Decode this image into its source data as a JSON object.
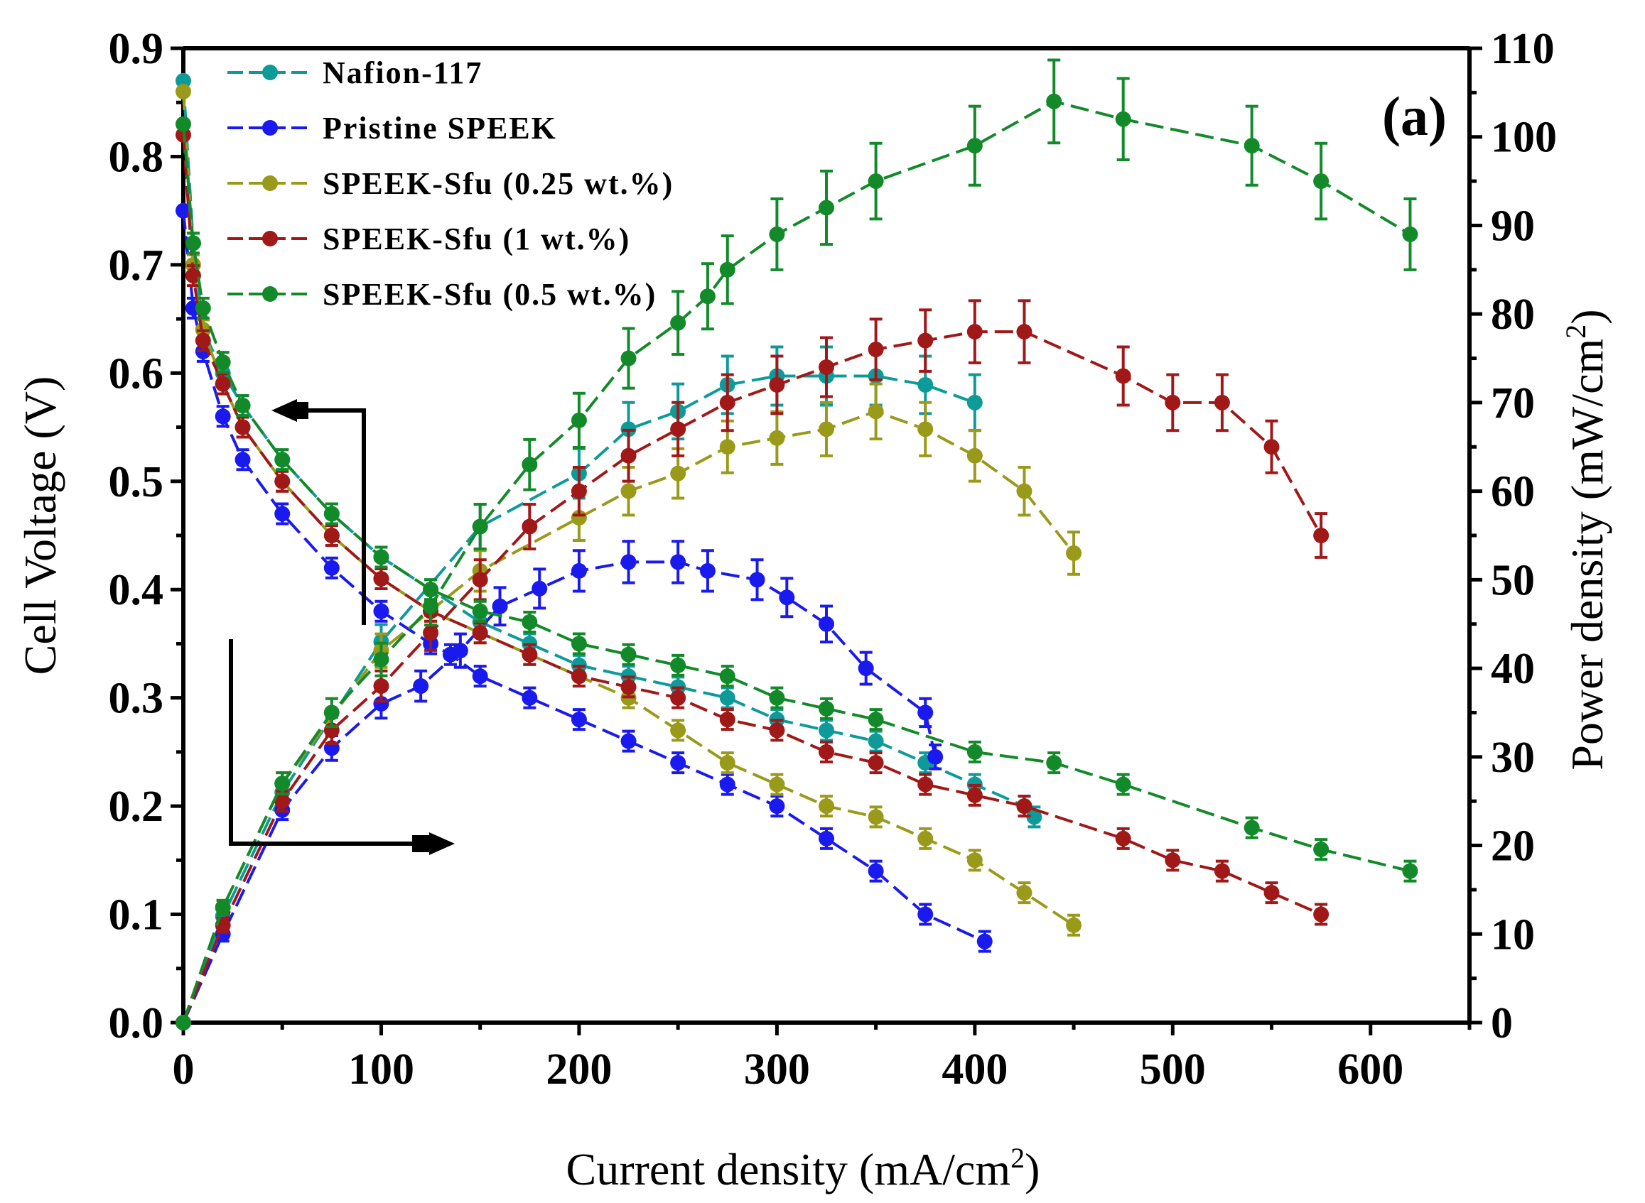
{
  "chart_data": {
    "type": "line",
    "panel_label": "(a)",
    "xlabel": "Current density (mA/cm",
    "xlabel_sup": "2",
    "xlabel_end": ")",
    "ylabel_left": "Cell Voltage (V)",
    "ylabel_right": "Power density (mW/cm",
    "ylabel_right_sup": "2",
    "ylabel_right_end": ")",
    "xlim": [
      0,
      650
    ],
    "ylim_left": [
      0,
      0.9
    ],
    "ylim_right": [
      0,
      110
    ],
    "x_ticks": [
      "0",
      "100",
      "200",
      "300",
      "400",
      "500",
      "600"
    ],
    "x_tick_values": [
      0,
      100,
      200,
      300,
      400,
      500,
      600
    ],
    "y_left_ticks": [
      "0.0",
      "0.1",
      "0.2",
      "0.3",
      "0.4",
      "0.5",
      "0.6",
      "0.7",
      "0.8",
      "0.9"
    ],
    "y_left_tick_values": [
      0,
      0.1,
      0.2,
      0.3,
      0.4,
      0.5,
      0.6,
      0.7,
      0.8,
      0.9
    ],
    "y_right_ticks": [
      "0",
      "10",
      "20",
      "30",
      "40",
      "50",
      "60",
      "70",
      "80",
      "90",
      "100",
      "110"
    ],
    "y_right_tick_values": [
      0,
      10,
      20,
      30,
      40,
      50,
      60,
      70,
      80,
      90,
      100,
      110
    ],
    "legend_position": "top-left",
    "series": [
      {
        "name": "Nafion-117",
        "color": "#0f9a9a",
        "voltage": {
          "x": [
            0,
            5,
            10,
            20,
            30,
            50,
            75,
            100,
            125,
            150,
            175,
            200,
            225,
            250,
            275,
            300,
            325,
            350,
            375,
            400,
            425,
            430
          ],
          "y": [
            0.87,
            0.72,
            0.64,
            0.6,
            0.57,
            0.52,
            0.47,
            0.43,
            0.4,
            0.37,
            0.35,
            0.33,
            0.32,
            0.31,
            0.3,
            0.28,
            0.27,
            0.26,
            0.24,
            0.22,
            0.2,
            0.19
          ]
        },
        "power": {
          "x": [
            0,
            20,
            50,
            100,
            150,
            200,
            225,
            250,
            275,
            300,
            325,
            350,
            375,
            400
          ],
          "y": [
            0,
            12,
            26,
            43,
            56,
            62,
            67,
            69,
            72,
            73,
            73,
            73,
            72,
            70
          ]
        }
      },
      {
        "name": "Pristine SPEEK",
        "color": "#1a1aee",
        "voltage": {
          "x": [
            0,
            5,
            10,
            20,
            30,
            50,
            75,
            100,
            125,
            135,
            150,
            175,
            200,
            225,
            250,
            275,
            300,
            325,
            350,
            375,
            405
          ],
          "y": [
            0.75,
            0.66,
            0.62,
            0.56,
            0.52,
            0.47,
            0.42,
            0.38,
            0.35,
            0.34,
            0.32,
            0.3,
            0.28,
            0.26,
            0.24,
            0.22,
            0.2,
            0.17,
            0.14,
            0.1,
            0.075
          ]
        },
        "power": {
          "x": [
            0,
            20,
            50,
            75,
            100,
            120,
            140,
            160,
            180,
            200,
            225,
            250,
            265,
            290,
            305,
            325,
            345,
            375,
            380
          ],
          "y": [
            0,
            10,
            24,
            31,
            36,
            38,
            42,
            47,
            49,
            51,
            52,
            52,
            51,
            50,
            48,
            45,
            40,
            35,
            30
          ]
        }
      },
      {
        "name": "SPEEK-Sfu (0.25 wt.%)",
        "color": "#9a9a1a",
        "voltage": {
          "x": [
            0,
            5,
            10,
            20,
            30,
            50,
            75,
            100,
            125,
            150,
            175,
            200,
            225,
            250,
            275,
            300,
            325,
            350,
            375,
            400,
            425,
            450
          ],
          "y": [
            0.86,
            0.7,
            0.64,
            0.59,
            0.55,
            0.5,
            0.45,
            0.41,
            0.38,
            0.36,
            0.34,
            0.32,
            0.3,
            0.27,
            0.24,
            0.22,
            0.2,
            0.19,
            0.17,
            0.15,
            0.12,
            0.09
          ]
        },
        "power": {
          "x": [
            0,
            20,
            50,
            100,
            150,
            200,
            225,
            250,
            275,
            300,
            325,
            350,
            375,
            400,
            425,
            450
          ],
          "y": [
            0,
            13,
            27,
            42,
            51,
            57,
            60,
            62,
            65,
            66,
            67,
            69,
            67,
            64,
            60,
            53
          ]
        }
      },
      {
        "name": "SPEEK-Sfu (1 wt.%)",
        "color": "#a01818",
        "voltage": {
          "x": [
            0,
            5,
            10,
            20,
            30,
            50,
            75,
            100,
            125,
            150,
            175,
            200,
            225,
            250,
            275,
            300,
            325,
            350,
            375,
            400,
            425,
            475,
            500,
            525,
            550,
            575
          ],
          "y": [
            0.82,
            0.69,
            0.63,
            0.59,
            0.55,
            0.5,
            0.45,
            0.41,
            0.38,
            0.36,
            0.34,
            0.32,
            0.31,
            0.3,
            0.28,
            0.27,
            0.25,
            0.24,
            0.22,
            0.21,
            0.2,
            0.17,
            0.15,
            0.14,
            0.12,
            0.1
          ]
        },
        "power": {
          "x": [
            0,
            20,
            50,
            75,
            100,
            125,
            150,
            175,
            200,
            225,
            250,
            275,
            300,
            325,
            350,
            375,
            400,
            425,
            475,
            500,
            525,
            550,
            575
          ],
          "y": [
            0,
            11,
            25,
            33,
            38,
            44,
            50,
            56,
            60,
            64,
            67,
            70,
            72,
            74,
            76,
            77,
            78,
            78,
            73,
            70,
            70,
            65,
            55
          ]
        }
      },
      {
        "name": "SPEEK-Sfu (0.5 wt.%)",
        "color": "#138a2a",
        "voltage": {
          "x": [
            0,
            5,
            10,
            20,
            30,
            50,
            75,
            100,
            125,
            150,
            175,
            200,
            225,
            250,
            275,
            300,
            325,
            350,
            400,
            440,
            475,
            540,
            575,
            620
          ],
          "y": [
            0.83,
            0.72,
            0.66,
            0.61,
            0.57,
            0.52,
            0.47,
            0.43,
            0.4,
            0.38,
            0.37,
            0.35,
            0.34,
            0.33,
            0.32,
            0.3,
            0.29,
            0.28,
            0.25,
            0.24,
            0.22,
            0.18,
            0.16,
            0.14
          ]
        },
        "power": {
          "x": [
            0,
            20,
            50,
            75,
            100,
            125,
            150,
            175,
            200,
            225,
            250,
            265,
            275,
            300,
            325,
            350,
            400,
            440,
            475,
            540,
            575,
            620
          ],
          "y": [
            0,
            13,
            27,
            35,
            41,
            47,
            56,
            63,
            68,
            75,
            79,
            82,
            85,
            89,
            92,
            95,
            99,
            104,
            102,
            99,
            95,
            89
          ]
        }
      }
    ]
  }
}
